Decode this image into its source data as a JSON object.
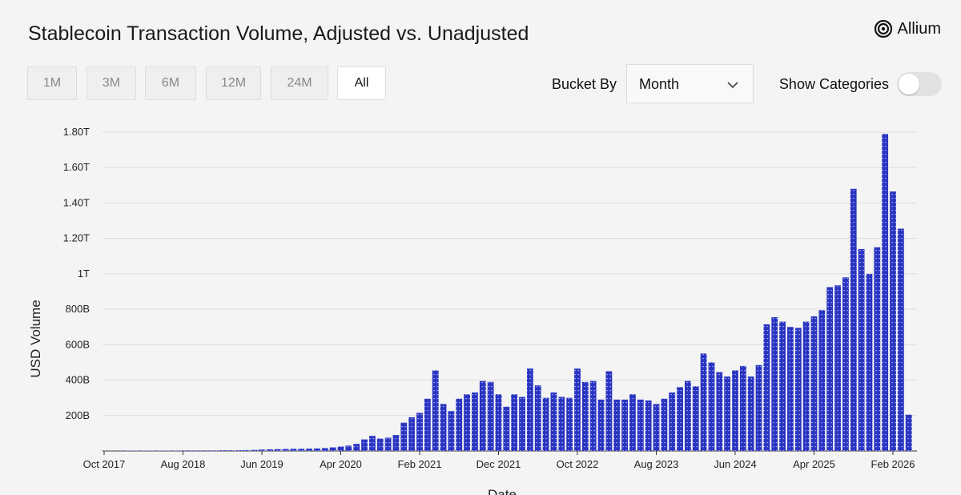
{
  "ui": {
    "title": "Stablecoin Transaction Volume, Adjusted vs. Unadjusted",
    "brand": "Allium",
    "ranges": [
      "1M",
      "3M",
      "6M",
      "12M",
      "24M",
      "All"
    ],
    "selected_range": "All",
    "bucket_label": "Bucket By",
    "bucket_value": "Month",
    "toggle_label": "Show Categories"
  },
  "chart_data": {
    "type": "bar",
    "y_label": "USD Volume",
    "x_label": "Date",
    "color": "#2a35c2",
    "grid": true,
    "ylim": [
      0,
      1800000000000.0
    ],
    "yticks": [
      {
        "value": 200000000000.0,
        "label": "200B"
      },
      {
        "value": 400000000000.0,
        "label": "400B"
      },
      {
        "value": 600000000000.0,
        "label": "600B"
      },
      {
        "value": 800000000000.0,
        "label": "800B"
      },
      {
        "value": 1000000000000.0,
        "label": "1T"
      },
      {
        "value": 1200000000000.0,
        "label": "1.20T"
      },
      {
        "value": 1400000000000.0,
        "label": "1.40T"
      },
      {
        "value": 1600000000000.0,
        "label": "1.60T"
      },
      {
        "value": 1800000000000.0,
        "label": "1.80T"
      }
    ],
    "categories": [
      "Oct 2017",
      null,
      null,
      null,
      null,
      null,
      null,
      null,
      null,
      null,
      "Aug 2018",
      null,
      null,
      null,
      null,
      null,
      null,
      null,
      null,
      null,
      "Jun 2019",
      null,
      null,
      null,
      null,
      null,
      null,
      null,
      null,
      null,
      "Apr 2020",
      null,
      null,
      null,
      null,
      null,
      null,
      null,
      null,
      null,
      "Feb 2021",
      null,
      null,
      null,
      null,
      null,
      null,
      null,
      null,
      null,
      "Dec 2021",
      null,
      null,
      null,
      null,
      null,
      null,
      null,
      null,
      null,
      "Oct 2022",
      null,
      null,
      null,
      null,
      null,
      null,
      null,
      null,
      null,
      "Aug 2023",
      null,
      null,
      null,
      null,
      null,
      null,
      null,
      null,
      null,
      "Jun 2024",
      null,
      null,
      null,
      null,
      null,
      null,
      null,
      null,
      null,
      "Apr 2025",
      null,
      null,
      null,
      null,
      null,
      null,
      null,
      null,
      null,
      "Feb 2026",
      null,
      null
    ],
    "values": [
      1000000000.0,
      1000000000.0,
      1000000000.0,
      2000000000.0,
      2000000000.0,
      2000000000.0,
      2000000000.0,
      2000000000.0,
      2000000000.0,
      2000000000.0,
      3000000000.0,
      3000000000.0,
      3000000000.0,
      3000000000.0,
      3000000000.0,
      4000000000.0,
      4000000000.0,
      4000000000.0,
      5000000000.0,
      6000000000.0,
      8000000000.0,
      9000000000.0,
      10000000000.0,
      11000000000.0,
      12000000000.0,
      12000000000.0,
      13000000000.0,
      14000000000.0,
      16000000000.0,
      20000000000.0,
      25000000000.0,
      30000000000.0,
      40000000000.0,
      65000000000.0,
      85000000000.0,
      70000000000.0,
      75000000000.0,
      90000000000.0,
      160000000000.0,
      190000000000.0,
      215000000000.0,
      295000000000.0,
      455000000000.0,
      265000000000.0,
      225000000000.0,
      295000000000.0,
      320000000000.0,
      330000000000.0,
      395000000000.0,
      390000000000.0,
      320000000000.0,
      250000000000.0,
      320000000000.0,
      305000000000.0,
      465000000000.0,
      370000000000.0,
      300000000000.0,
      330000000000.0,
      305000000000.0,
      300000000000.0,
      465000000000.0,
      390000000000.0,
      395000000000.0,
      290000000000.0,
      450000000000.0,
      290000000000.0,
      290000000000.0,
      320000000000.0,
      290000000000.0,
      285000000000.0,
      265000000000.0,
      295000000000.0,
      330000000000.0,
      360000000000.0,
      395000000000.0,
      365000000000.0,
      550000000000.0,
      500000000000.0,
      445000000000.0,
      420000000000.0,
      455000000000.0,
      480000000000.0,
      420000000000.0,
      485000000000.0,
      715000000000.0,
      755000000000.0,
      730000000000.0,
      700000000000.0,
      695000000000.0,
      730000000000.0,
      760000000000.0,
      795000000000.0,
      925000000000.0,
      935000000000.0,
      980000000000.0,
      1480000000000.0,
      1140000000000.0,
      1000000000000.0,
      1150000000000.0,
      1790000000000.0,
      1465000000000.0,
      1255000000000.0,
      205000000000.0
    ]
  }
}
